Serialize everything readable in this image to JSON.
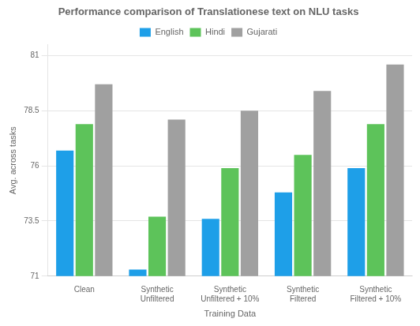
{
  "chart_data": {
    "type": "bar",
    "title": "Performance comparison of Translationese text on NLU tasks",
    "xlabel": "Training Data",
    "ylabel": "Avg. across tasks",
    "categories": [
      "Clean",
      "Synthetic\nUnfiltered",
      "Synthetic\nUnfiltered + 10%",
      "Synthetic\nFiltered",
      "Synthetic\nFiltered + 10%"
    ],
    "series": [
      {
        "name": "English",
        "color": "#1E9FE8",
        "values": [
          76.7,
          71.3,
          73.6,
          74.8,
          75.9
        ]
      },
      {
        "name": "Hindi",
        "color": "#5DC35A",
        "values": [
          77.9,
          73.7,
          75.9,
          76.5,
          77.9
        ]
      },
      {
        "name": "Gujarati",
        "color": "#A0A0A0",
        "values": [
          79.7,
          78.1,
          78.5,
          79.4,
          80.6
        ]
      }
    ],
    "ylim": [
      71,
      81.5
    ],
    "yticks": [
      71,
      73.5,
      76,
      78.5,
      81
    ],
    "grid": true,
    "legend": "top"
  }
}
